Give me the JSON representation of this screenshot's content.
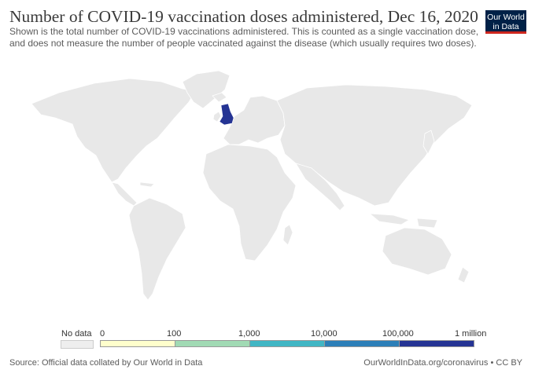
{
  "header": {
    "title": "Number of COVID-19 vaccination doses administered, Dec 16, 2020",
    "subtitle_line1": "Shown is the total number of COVID-19 vaccinations administered. This is counted as a single vaccination dose,",
    "subtitle_line2": "and does not measure the number of people vaccinated against the disease (which usually requires two doses)."
  },
  "logo": {
    "line1": "Our World",
    "line2": "in Data",
    "bg_color": "#002147",
    "accent_color": "#ce261e"
  },
  "map": {
    "land_color": "#e8e8e8",
    "border_color": "#ffffff",
    "highlight": {
      "country": "United Kingdom",
      "color": "#253494"
    }
  },
  "legend": {
    "no_data_label": "No data",
    "no_data_color": "#eeeeee",
    "ticks": [
      "0",
      "100",
      "1,000",
      "10,000",
      "100,000",
      "1 million"
    ],
    "bins": [
      "#ffffcc",
      "#a1dab4",
      "#41b6c4",
      "#2c7fb8",
      "#253494"
    ]
  },
  "footer": {
    "source": "Source: Official data collated by Our World in Data",
    "credit": "OurWorldInData.org/coronavirus • CC BY"
  }
}
